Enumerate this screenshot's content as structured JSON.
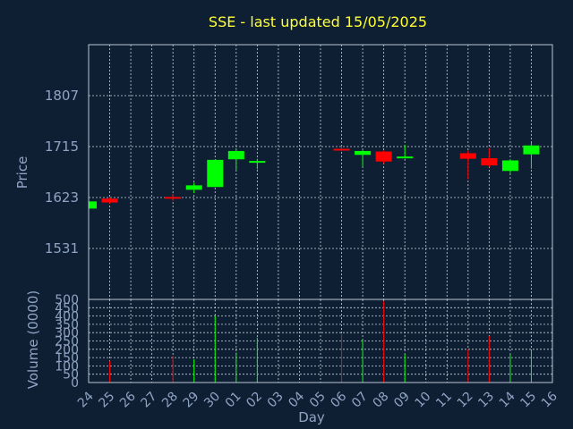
{
  "chart_data": {
    "type": "candlestick",
    "title": "SSE - last updated 15/05/2025",
    "ylabel": "Price",
    "volume_label": "Volume (0000)",
    "xlabel": "Day",
    "ylim": [
      1439,
      1899
    ],
    "price_ticks": [
      1531,
      1623,
      1715,
      1807
    ],
    "volume_ylim": [
      0,
      500
    ],
    "volume_ticks": [
      0,
      50,
      100,
      150,
      200,
      250,
      300,
      350,
      400,
      450,
      500
    ],
    "x_ticks": [
      "24",
      "25",
      "26",
      "27",
      "28",
      "29",
      "30",
      "01",
      "02",
      "03",
      "04",
      "05",
      "06",
      "07",
      "08",
      "09",
      "10",
      "11",
      "12",
      "13",
      "14",
      "15",
      "16"
    ],
    "up_color": "#00ff00",
    "down_color": "#ff0000",
    "candles": [
      {
        "day": "24",
        "open": 1603,
        "high": 1617,
        "low": 1601,
        "close": 1616,
        "volume": 0
      },
      {
        "day": "25",
        "open": 1621,
        "high": 1623,
        "low": 1612,
        "close": 1614,
        "volume": 130
      },
      {
        "day": "28",
        "open": 1624,
        "high": 1630,
        "low": 1617,
        "close": 1623,
        "volume": 160
      },
      {
        "day": "29",
        "open": 1637,
        "high": 1650,
        "low": 1631,
        "close": 1645,
        "volume": 140
      },
      {
        "day": "30",
        "open": 1642,
        "high": 1691,
        "low": 1642,
        "close": 1691,
        "volume": 400
      },
      {
        "day": "01",
        "open": 1692,
        "high": 1711,
        "low": 1673,
        "close": 1707,
        "volume": 180
      },
      {
        "day": "02",
        "open": 1687,
        "high": 1693,
        "low": 1674,
        "close": 1689,
        "volume": 270
      },
      {
        "day": "06",
        "open": 1711,
        "high": 1716,
        "low": 1707,
        "close": 1709,
        "volume": 290
      },
      {
        "day": "07",
        "open": 1700,
        "high": 1709,
        "low": 1678,
        "close": 1707,
        "volume": 260
      },
      {
        "day": "08",
        "open": 1706,
        "high": 1708,
        "low": 1684,
        "close": 1688,
        "volume": 490
      },
      {
        "day": "09",
        "open": 1694,
        "high": 1718,
        "low": 1693,
        "close": 1697,
        "volume": 170
      },
      {
        "day": "12",
        "open": 1703,
        "high": 1708,
        "low": 1656,
        "close": 1693,
        "volume": 200
      },
      {
        "day": "13",
        "open": 1694,
        "high": 1712,
        "low": 1678,
        "close": 1681,
        "volume": 280
      },
      {
        "day": "14",
        "open": 1671,
        "high": 1692,
        "low": 1667,
        "close": 1690,
        "volume": 170
      },
      {
        "day": "15",
        "open": 1701,
        "high": 1722,
        "low": 1675,
        "close": 1717,
        "volume": 190
      }
    ]
  },
  "colors": {
    "background": "#0f1f33",
    "title": "#ffff33",
    "axis_text": "#8fa4c4",
    "grid": "#c9d2df"
  }
}
